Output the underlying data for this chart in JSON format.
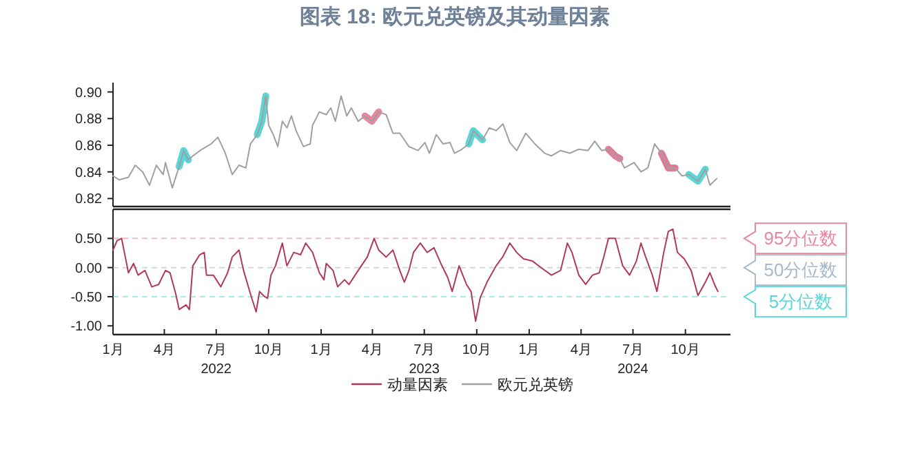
{
  "chart_data": [
    {
      "type": "line",
      "title": "图表 18: 欧元兑英镑及其动量因素",
      "xlim": [
        "2022-01-01",
        "2024-12-19"
      ],
      "ylim": [
        0.814,
        0.907
      ],
      "yticks": [
        {
          "value": 0.82,
          "label": "0.82"
        },
        {
          "value": 0.84,
          "label": "0.84"
        },
        {
          "value": 0.86,
          "label": "0.86"
        },
        {
          "value": 0.88,
          "label": "0.88"
        },
        {
          "value": 0.9,
          "label": "0.90"
        }
      ],
      "tick_labels": "y",
      "legend": "bottom",
      "series": [
        {
          "name": "欧元兑英镑",
          "color": "#a0a0a0",
          "x": [
            "2022-01-01",
            "2022-01-12",
            "2022-01-28",
            "2022-02-09",
            "2022-02-22",
            "2022-03-06",
            "2022-03-18",
            "2022-03-30",
            "2022-04-03",
            "2022-04-15",
            "2022-04-27",
            "2022-05-05",
            "2022-05-13",
            "2022-05-21",
            "2022-06-06",
            "2022-06-22",
            "2022-07-04",
            "2022-07-17",
            "2022-07-29",
            "2022-08-10",
            "2022-08-22",
            "2022-08-30",
            "2022-09-11",
            "2022-09-19",
            "2022-09-26",
            "2022-10-01",
            "2022-10-09",
            "2022-10-17",
            "2022-10-25",
            "2022-11-02",
            "2022-11-10",
            "2022-11-18",
            "2022-12-01",
            "2022-12-13",
            "2022-12-17",
            "2022-12-29",
            "2023-01-10",
            "2023-01-18",
            "2023-01-26",
            "2023-02-05",
            "2023-02-15",
            "2023-02-23",
            "2023-03-07",
            "2023-03-19",
            "2023-03-31",
            "2023-04-12",
            "2023-04-25",
            "2023-05-07",
            "2023-05-19",
            "2023-06-04",
            "2023-06-20",
            "2023-07-02",
            "2023-07-10",
            "2023-07-22",
            "2023-08-03",
            "2023-08-15",
            "2023-08-23",
            "2023-09-05",
            "2023-09-17",
            "2023-09-25",
            "2023-10-11",
            "2023-10-23",
            "2023-11-04",
            "2023-11-16",
            "2023-11-28",
            "2023-12-10",
            "2023-12-26",
            "2024-01-11",
            "2024-01-28",
            "2024-02-09",
            "2024-02-25",
            "2024-03-12",
            "2024-03-28",
            "2024-04-13",
            "2024-04-25",
            "2024-05-07",
            "2024-05-19",
            "2024-05-31",
            "2024-06-08",
            "2024-06-16",
            "2024-07-03",
            "2024-07-15",
            "2024-07-27",
            "2024-08-08",
            "2024-08-20",
            "2024-09-01",
            "2024-09-13",
            "2024-09-25",
            "2024-10-07",
            "2024-10-23",
            "2024-11-05",
            "2024-11-13",
            "2024-11-25"
          ],
          "values": [
            0.837,
            0.834,
            0.836,
            0.845,
            0.84,
            0.83,
            0.845,
            0.838,
            0.847,
            0.828,
            0.844,
            0.856,
            0.849,
            0.852,
            0.857,
            0.861,
            0.866,
            0.854,
            0.838,
            0.845,
            0.843,
            0.861,
            0.868,
            0.878,
            0.897,
            0.875,
            0.868,
            0.859,
            0.878,
            0.873,
            0.882,
            0.871,
            0.859,
            0.861,
            0.875,
            0.885,
            0.883,
            0.888,
            0.878,
            0.897,
            0.882,
            0.888,
            0.878,
            0.882,
            0.878,
            0.885,
            0.883,
            0.869,
            0.869,
            0.859,
            0.856,
            0.862,
            0.854,
            0.868,
            0.861,
            0.862,
            0.854,
            0.857,
            0.861,
            0.871,
            0.864,
            0.873,
            0.871,
            0.876,
            0.862,
            0.856,
            0.869,
            0.861,
            0.854,
            0.852,
            0.856,
            0.854,
            0.857,
            0.856,
            0.863,
            0.856,
            0.857,
            0.852,
            0.85,
            0.843,
            0.847,
            0.84,
            0.843,
            0.861,
            0.854,
            0.843,
            0.843,
            0.837,
            0.838,
            0.833,
            0.842,
            0.83,
            0.835
          ]
        },
        {
          "color": "#5ad6d6",
          "x": [
            "2022-04-27",
            "2022-05-05",
            "2022-05-13"
          ],
          "values": [
            0.844,
            0.856,
            0.849
          ]
        },
        {
          "color": "#5ad6d6",
          "x": [
            "2022-09-11",
            "2022-09-19",
            "2022-09-26"
          ],
          "values": [
            0.868,
            0.878,
            0.897
          ]
        },
        {
          "color": "#e8879e",
          "x": [
            "2023-03-19",
            "2023-03-31",
            "2023-04-12"
          ],
          "values": [
            0.882,
            0.878,
            0.885
          ]
        },
        {
          "color": "#5ad6d6",
          "x": [
            "2023-09-17",
            "2023-09-25",
            "2023-10-11"
          ],
          "values": [
            0.861,
            0.871,
            0.864
          ]
        },
        {
          "color": "#e47c98",
          "x": [
            "2024-05-19",
            "2024-05-31",
            "2024-06-08"
          ],
          "values": [
            0.857,
            0.852,
            0.85
          ]
        },
        {
          "color": "#e27a96",
          "x": [
            "2024-08-20",
            "2024-09-01",
            "2024-09-13"
          ],
          "values": [
            0.854,
            0.843,
            0.843
          ]
        },
        {
          "color": "#5ad6d6",
          "x": [
            "2024-10-07",
            "2024-10-23",
            "2024-11-05"
          ],
          "values": [
            0.838,
            0.833,
            0.842
          ]
        }
      ]
    },
    {
      "type": "line",
      "xlim": [
        "2022-01-01",
        "2024-12-19"
      ],
      "xticks": [
        {
          "value": "2022-01-01",
          "label": "1月"
        },
        {
          "value": "2022-04-01",
          "label": "4月"
        },
        {
          "value": "2022-07-01",
          "label": "7月\n2022"
        },
        {
          "value": "2022-10-01",
          "label": "10月"
        },
        {
          "value": "2023-01-01",
          "label": "1月"
        },
        {
          "value": "2023-04-01",
          "label": "4月"
        },
        {
          "value": "2023-07-01",
          "label": "7月\n2023"
        },
        {
          "value": "2023-10-01",
          "label": "10月"
        },
        {
          "value": "2024-01-01",
          "label": "1月"
        },
        {
          "value": "2024-04-01",
          "label": "4月"
        },
        {
          "value": "2024-07-01",
          "label": "7月\n2024"
        },
        {
          "value": "2024-10-01",
          "label": "10月"
        }
      ],
      "ylim": [
        -1.15,
        1.0
      ],
      "yticks": [
        {
          "value": -1,
          "label": "-1.00"
        },
        {
          "value": -0.5,
          "label": "-0.50"
        },
        {
          "value": 0,
          "label": "0.00"
        },
        {
          "value": 0.5,
          "label": "0.50"
        }
      ],
      "legend": "bottom",
      "ref_lines": [
        {
          "axis": "y",
          "value": 0.5,
          "label": "95分位数",
          "color": "#e8879e",
          "line_style": "dashed"
        },
        {
          "axis": "y",
          "value": 0,
          "label": "50分位数",
          "color": "#a9b8c8",
          "line_style": "dashed"
        },
        {
          "axis": "y",
          "value": -0.5,
          "label": "5分位数",
          "color": "#5ad6d6",
          "line_style": "dashed"
        }
      ],
      "series": [
        {
          "name": "动量因素",
          "color": "#b03a55",
          "x": [
            "2022-01-01",
            "2022-01-08",
            "2022-01-16",
            "2022-01-24",
            "2022-01-28",
            "2022-02-06",
            "2022-02-14",
            "2022-02-26",
            "2022-03-10",
            "2022-03-22",
            "2022-04-03",
            "2022-04-11",
            "2022-04-21",
            "2022-04-27",
            "2022-05-09",
            "2022-05-15",
            "2022-05-21",
            "2022-06-02",
            "2022-06-10",
            "2022-06-14",
            "2022-06-26",
            "2022-07-09",
            "2022-07-21",
            "2022-07-29",
            "2022-08-10",
            "2022-08-18",
            "2022-08-30",
            "2022-09-09",
            "2022-09-15",
            "2022-09-23",
            "2022-09-29",
            "2022-10-05",
            "2022-10-13",
            "2022-10-25",
            "2022-11-02",
            "2022-11-14",
            "2022-11-26",
            "2022-12-05",
            "2022-12-17",
            "2022-12-29",
            "2023-01-06",
            "2023-01-10",
            "2023-01-22",
            "2023-01-30",
            "2023-02-11",
            "2023-02-19",
            "2023-03-07",
            "2023-03-23",
            "2023-04-04",
            "2023-04-12",
            "2023-04-25",
            "2023-05-07",
            "2023-05-19",
            "2023-05-27",
            "2023-06-04",
            "2023-06-12",
            "2023-06-24",
            "2023-07-06",
            "2023-07-18",
            "2023-07-30",
            "2023-08-11",
            "2023-08-19",
            "2023-08-31",
            "2023-09-13",
            "2023-09-21",
            "2023-09-29",
            "2023-10-07",
            "2023-10-19",
            "2023-11-04",
            "2023-11-16",
            "2023-11-28",
            "2023-12-10",
            "2023-12-22",
            "2024-01-07",
            "2024-01-23",
            "2024-02-09",
            "2024-02-25",
            "2024-03-08",
            "2024-03-16",
            "2024-03-28",
            "2024-04-09",
            "2024-04-21",
            "2024-05-03",
            "2024-05-11",
            "2024-05-19",
            "2024-05-31",
            "2024-06-13",
            "2024-06-25",
            "2024-07-07",
            "2024-07-15",
            "2024-07-23",
            "2024-08-04",
            "2024-08-12",
            "2024-08-24",
            "2024-09-01",
            "2024-09-09",
            "2024-09-17",
            "2024-09-29",
            "2024-10-11",
            "2024-10-23",
            "2024-11-05",
            "2024-11-13",
            "2024-11-21",
            "2024-11-27"
          ],
          "values": [
            0.3,
            0.46,
            0.5,
            0.11,
            -0.09,
            0.07,
            -0.13,
            -0.05,
            -0.33,
            -0.29,
            -0.05,
            -0.09,
            -0.45,
            -0.72,
            -0.64,
            -0.72,
            0.03,
            0.22,
            0.26,
            -0.13,
            -0.13,
            -0.33,
            -0.09,
            0.18,
            0.3,
            -0.05,
            -0.45,
            -0.76,
            -0.41,
            -0.49,
            -0.53,
            -0.13,
            0.03,
            0.42,
            0.03,
            0.26,
            0.22,
            0.42,
            0.26,
            -0.09,
            -0.21,
            0.07,
            -0.05,
            -0.33,
            -0.21,
            -0.29,
            -0.05,
            0.18,
            0.5,
            0.3,
            0.18,
            0.3,
            -0.05,
            -0.25,
            -0.05,
            0.26,
            0.42,
            0.26,
            0.34,
            0.07,
            -0.17,
            -0.41,
            0.03,
            -0.29,
            -0.41,
            -0.92,
            -0.52,
            -0.25,
            0.03,
            0.19,
            0.42,
            0.26,
            0.15,
            0.11,
            -0.01,
            -0.13,
            -0.05,
            0.42,
            0.26,
            -0.13,
            -0.29,
            -0.13,
            -0.09,
            0.19,
            0.5,
            0.5,
            0.03,
            -0.13,
            0.11,
            0.42,
            0.19,
            -0.13,
            -0.41,
            0.26,
            0.62,
            0.66,
            0.26,
            0.15,
            -0.05,
            -0.48,
            -0.25,
            -0.09,
            -0.29,
            -0.41
          ]
        }
      ]
    }
  ]
}
